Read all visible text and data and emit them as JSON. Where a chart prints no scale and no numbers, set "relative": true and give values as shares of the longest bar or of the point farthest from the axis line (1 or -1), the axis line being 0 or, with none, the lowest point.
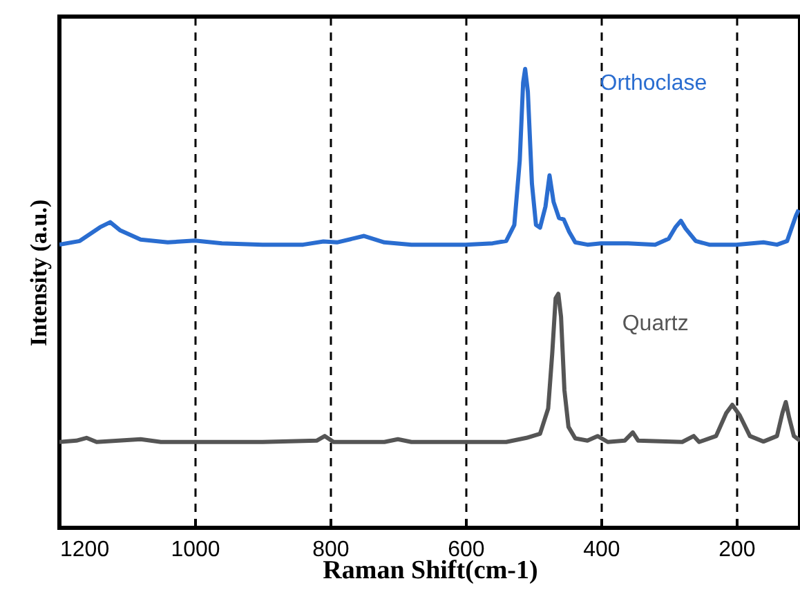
{
  "chart_data": {
    "type": "line",
    "xlabel": "Raman Shift(cm-1)",
    "ylabel": "Intensity (a.u.)",
    "relative": true,
    "xlim": [
      1200,
      106
    ],
    "xticks": [
      1200,
      1000,
      800,
      600,
      400,
      200
    ],
    "grid": "x",
    "line_style": "solid",
    "marker": "none",
    "series": [
      {
        "name": "Orthoclase",
        "color": "#2a6dd0",
        "x": [
          1200,
          1170,
          1140,
          1125,
          1110,
          1080,
          1040,
          1000,
          960,
          900,
          840,
          810,
          790,
          750,
          720,
          680,
          600,
          560,
          540,
          528,
          520,
          515,
          512,
          508,
          502,
          496,
          490,
          482,
          476,
          470,
          462,
          455,
          447,
          438,
          420,
          400,
          360,
          320,
          300,
          290,
          282,
          275,
          260,
          240,
          200,
          160,
          140,
          125,
          118,
          112,
          108
        ],
        "values": [
          0.617,
          0.625,
          0.655,
          0.666,
          0.648,
          0.628,
          0.622,
          0.626,
          0.62,
          0.617,
          0.617,
          0.624,
          0.622,
          0.636,
          0.622,
          0.617,
          0.617,
          0.62,
          0.625,
          0.66,
          0.8,
          0.97,
          1.0,
          0.95,
          0.75,
          0.66,
          0.654,
          0.7,
          0.768,
          0.71,
          0.675,
          0.672,
          0.645,
          0.622,
          0.617,
          0.62,
          0.62,
          0.617,
          0.63,
          0.655,
          0.669,
          0.652,
          0.625,
          0.617,
          0.617,
          0.622,
          0.617,
          0.625,
          0.655,
          0.68,
          0.693
        ]
      },
      {
        "name": "Quartz",
        "color": "#555555",
        "x": [
          1200,
          1175,
          1160,
          1145,
          1080,
          1050,
          900,
          820,
          808,
          795,
          720,
          700,
          680,
          540,
          510,
          490,
          478,
          472,
          467,
          463,
          459,
          454,
          448,
          438,
          420,
          405,
          390,
          365,
          353,
          345,
          280,
          263,
          255,
          230,
          215,
          206,
          195,
          180,
          160,
          140,
          132,
          127,
          122,
          115,
          106
        ],
        "values": [
          0.187,
          0.19,
          0.196,
          0.187,
          0.193,
          0.187,
          0.187,
          0.19,
          0.2,
          0.187,
          0.187,
          0.193,
          0.187,
          0.187,
          0.196,
          0.205,
          0.26,
          0.38,
          0.5,
          0.51,
          0.46,
          0.3,
          0.22,
          0.195,
          0.19,
          0.2,
          0.187,
          0.19,
          0.208,
          0.19,
          0.187,
          0.2,
          0.187,
          0.2,
          0.25,
          0.268,
          0.245,
          0.2,
          0.188,
          0.2,
          0.25,
          0.274,
          0.24,
          0.2,
          0.19
        ]
      }
    ]
  }
}
